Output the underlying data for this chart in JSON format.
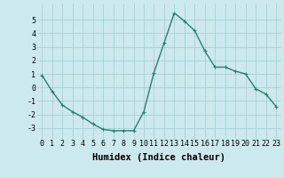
{
  "x": [
    0,
    1,
    2,
    3,
    4,
    5,
    6,
    7,
    8,
    9,
    10,
    11,
    12,
    13,
    14,
    15,
    16,
    17,
    18,
    19,
    20,
    21,
    22,
    23
  ],
  "y": [
    0.9,
    -0.3,
    -1.3,
    -1.8,
    -2.2,
    -2.7,
    -3.1,
    -3.2,
    -3.2,
    -3.2,
    -1.8,
    1.1,
    3.3,
    5.5,
    4.9,
    4.2,
    2.7,
    1.5,
    1.5,
    1.2,
    1.0,
    -0.1,
    -0.5,
    -1.4
  ],
  "line_color": "#2e7d6e",
  "marker": "+",
  "marker_size": 3,
  "linewidth": 1.0,
  "xlabel": "Humidex (Indice chaleur)",
  "xlim": [
    -0.5,
    23.5
  ],
  "ylim": [
    -3.8,
    6.2
  ],
  "yticks": [
    -3,
    -2,
    -1,
    0,
    1,
    2,
    3,
    4,
    5
  ],
  "xticks": [
    0,
    1,
    2,
    3,
    4,
    5,
    6,
    7,
    8,
    9,
    10,
    11,
    12,
    13,
    14,
    15,
    16,
    17,
    18,
    19,
    20,
    21,
    22,
    23
  ],
  "background_color": "#cce9ed",
  "grid_color": "#aad0d5",
  "tick_fontsize": 6.0,
  "xlabel_fontsize": 7.5
}
